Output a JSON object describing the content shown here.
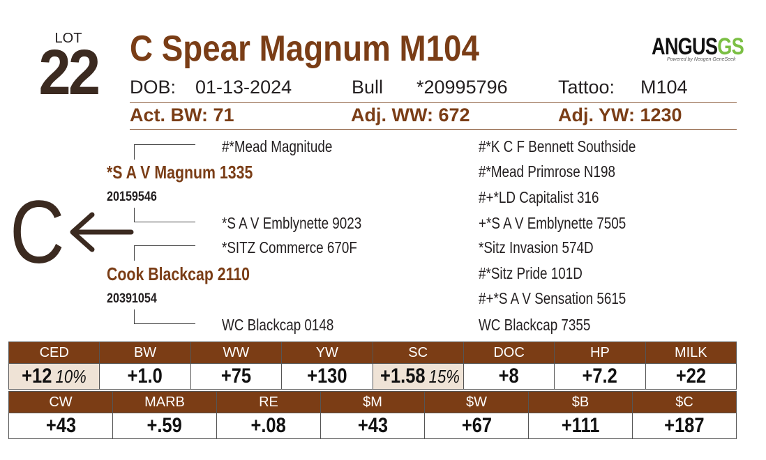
{
  "lot": {
    "label": "LOT",
    "number": "22"
  },
  "animal": {
    "name": "C Spear Magnum M104",
    "dob_label": "DOB:",
    "dob": "01-13-2024",
    "sex": "Bull",
    "registration": "*20995796",
    "tattoo_label": "Tattoo:",
    "tattoo": "M104"
  },
  "logo": {
    "main": "ANGUS",
    "accent": "GS",
    "tagline": "Powered by Neogen GeneSeek"
  },
  "performance": {
    "act_bw": "Act. BW: 71",
    "adj_ww": "Adj. WW: 672",
    "adj_yw": "Adj. YW: 1230"
  },
  "pedigree": {
    "sire": {
      "name": "*S A V Magnum 1335",
      "reg": "20159546"
    },
    "dam": {
      "name": "Cook Blackcap 2110",
      "reg": "20391054"
    },
    "grandparents": [
      "#*Mead Magnitude",
      "*S A V Emblynette 9023",
      "*SITZ Commerce 670F",
      "WC Blackcap 0148"
    ],
    "great_grandparents": [
      "#*K C F Bennett Southside",
      "#*Mead Primrose N198",
      "#+*LD Capitalist 316",
      "+*S A V Emblynette 7505",
      "*Sitz Invasion 574D",
      "#*Sitz Pride 101D",
      "#+*S A V Sensation 5615",
      "WC Blackcap 7355"
    ]
  },
  "category_marker": "C",
  "colors": {
    "brown": "#7a3d16",
    "header_bg": "#7b3d15",
    "highlight": "#efe3d6",
    "logo_accent": "#7bbf44"
  },
  "epd_row1": {
    "headers": [
      "CED",
      "BW",
      "WW",
      "YW",
      "SC",
      "DOC",
      "HP",
      "MILK"
    ],
    "values": [
      {
        "v": "+12",
        "pct": "10%"
      },
      {
        "v": "+1.0"
      },
      {
        "v": "+75"
      },
      {
        "v": "+130"
      },
      {
        "v": "+1.58",
        "pct": "15%"
      },
      {
        "v": "+8"
      },
      {
        "v": "+7.2"
      },
      {
        "v": "+22"
      }
    ]
  },
  "epd_row2": {
    "headers": [
      "CW",
      "MARB",
      "RE",
      "$M",
      "$W",
      "$B",
      "$C"
    ],
    "values": [
      {
        "v": "+43"
      },
      {
        "v": "+.59"
      },
      {
        "v": "+.08"
      },
      {
        "v": "+43"
      },
      {
        "v": "+67"
      },
      {
        "v": "+111"
      },
      {
        "v": "+187"
      }
    ]
  }
}
